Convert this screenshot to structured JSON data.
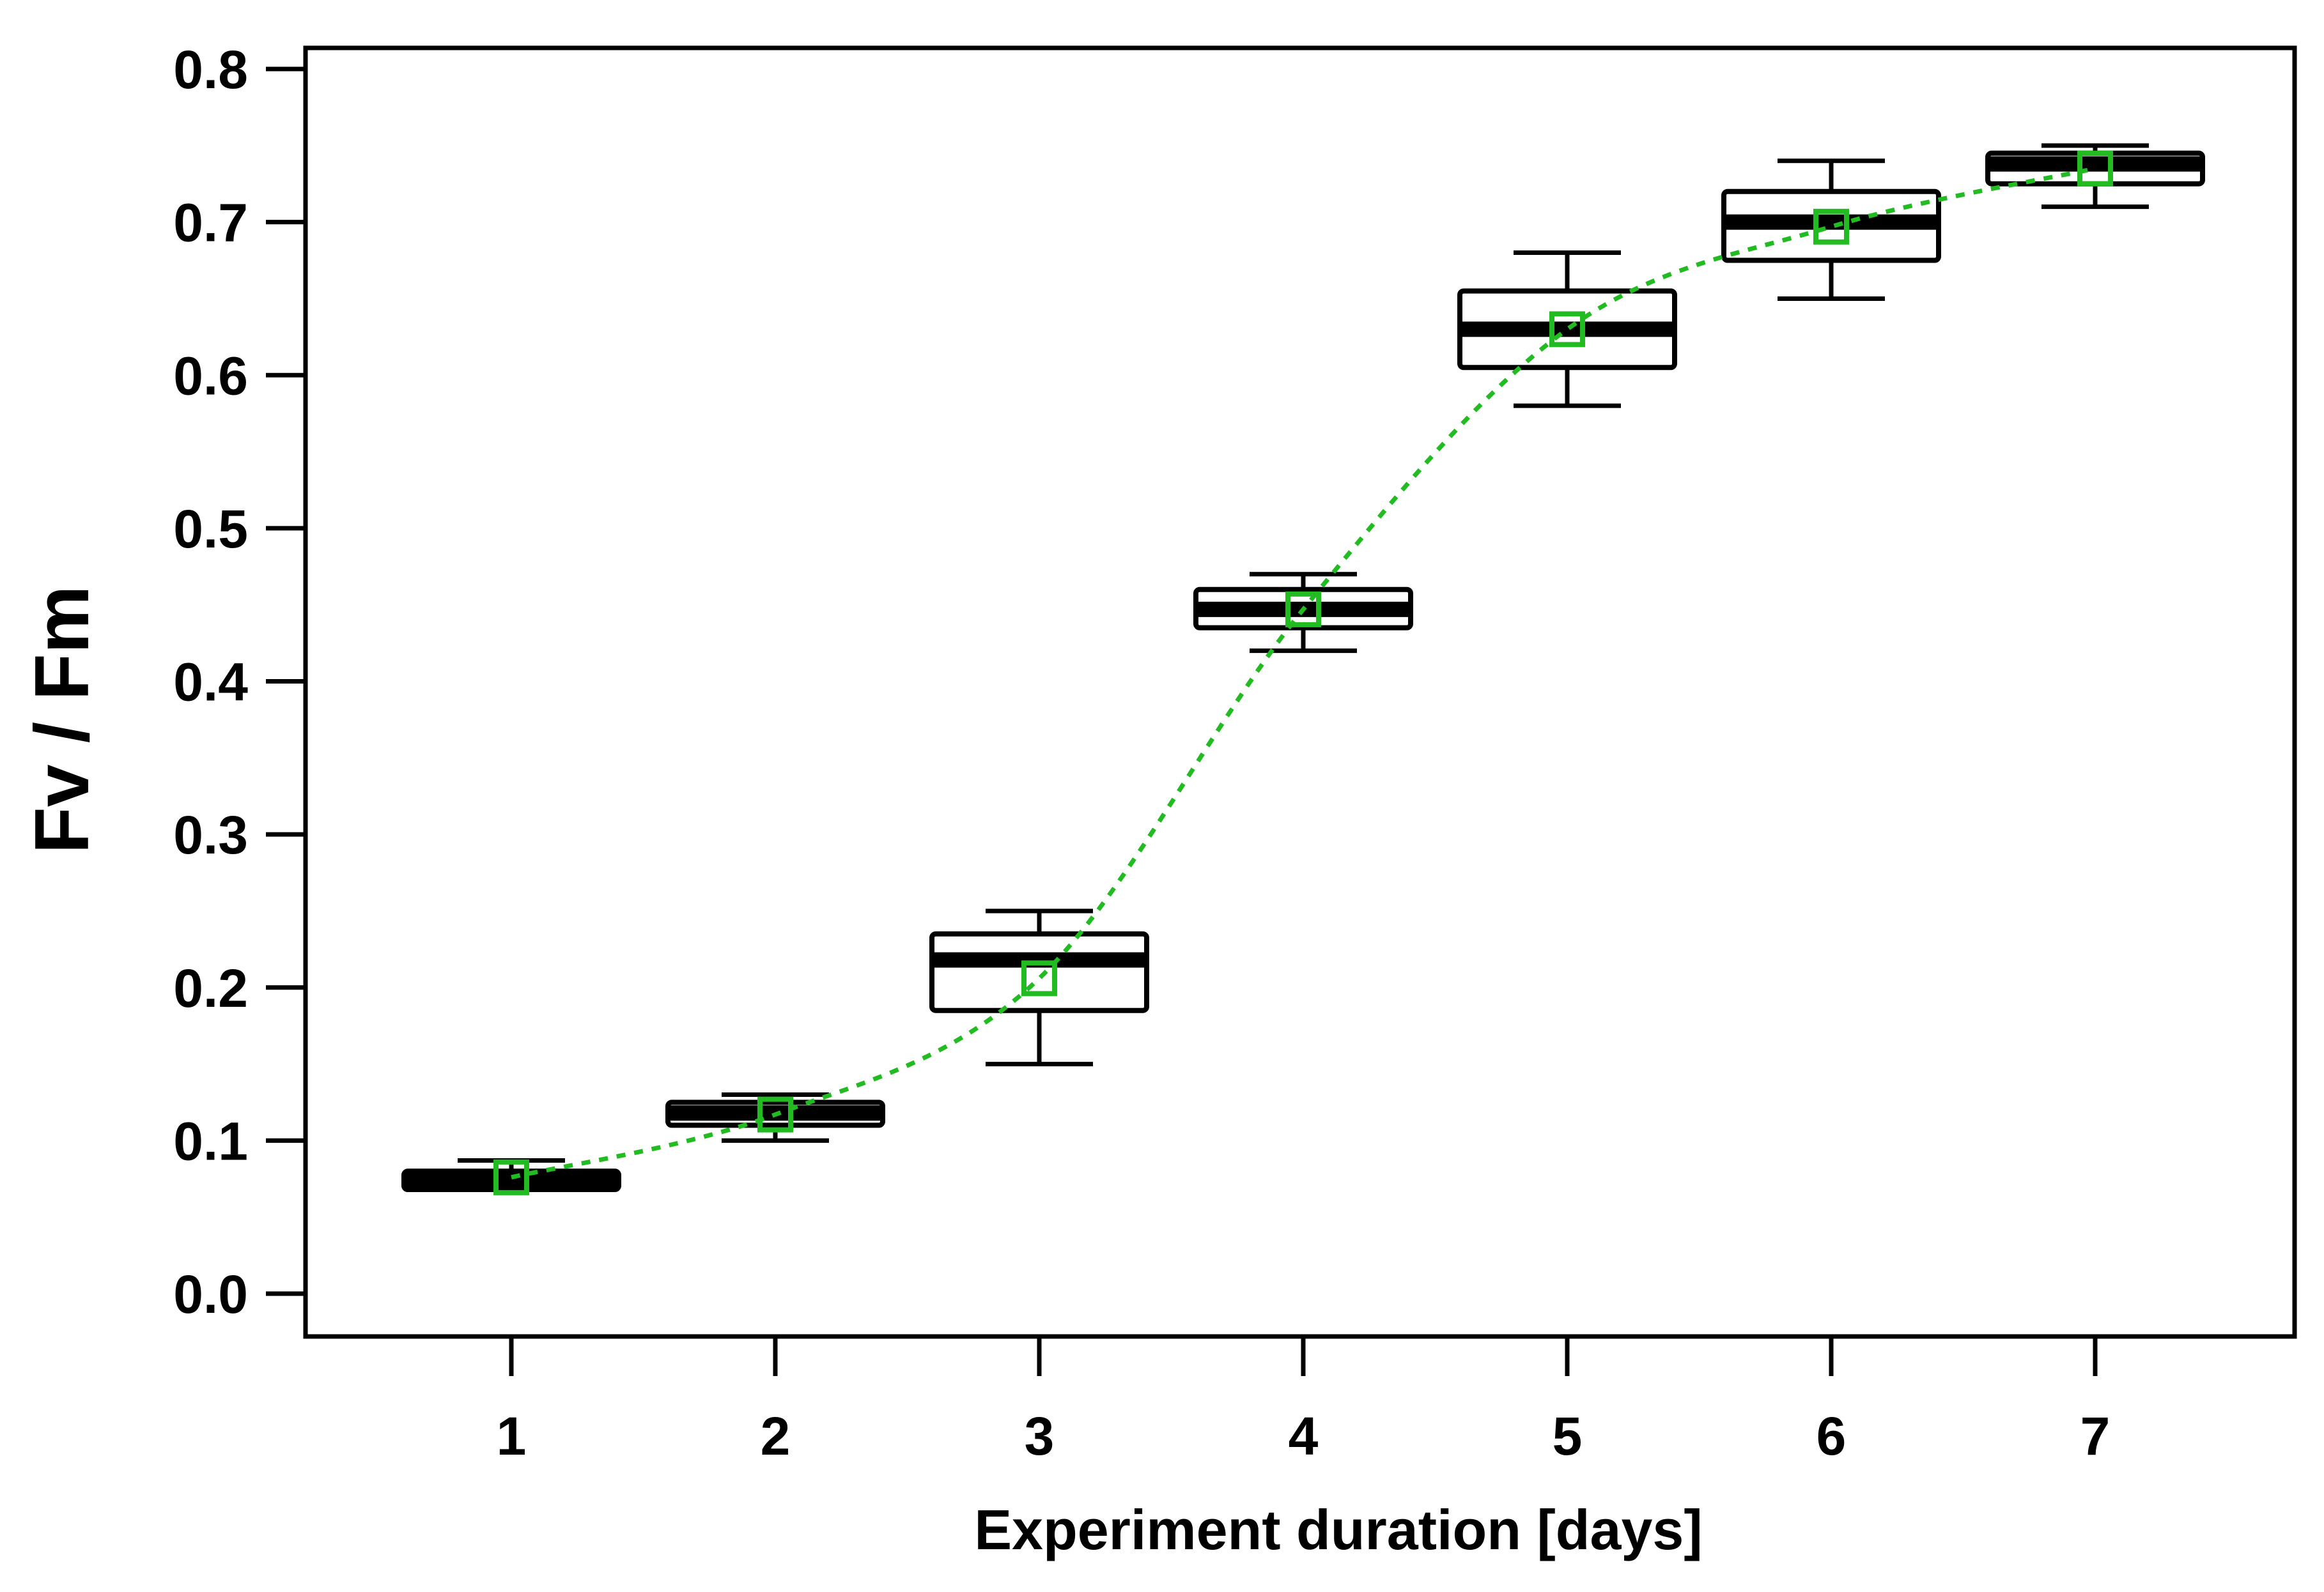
{
  "chart_data": {
    "type": "box",
    "title": "",
    "xlabel": "Experiment duration [days]",
    "ylabel": "Fv / Fm",
    "categories": [
      "1",
      "2",
      "3",
      "4",
      "5",
      "6",
      "7"
    ],
    "ylim": [
      0.0,
      0.8
    ],
    "y_ticks": [
      "0.0",
      "0.1",
      "0.2",
      "0.3",
      "0.4",
      "0.5",
      "0.6",
      "0.7",
      "0.8"
    ],
    "grid": false,
    "boxes": [
      {
        "day": "1",
        "whisker_low": 0.068,
        "q1": 0.068,
        "median": 0.074,
        "q3": 0.08,
        "whisker_high": 0.087
      },
      {
        "day": "2",
        "whisker_low": 0.1,
        "q1": 0.11,
        "median": 0.118,
        "q3": 0.125,
        "whisker_high": 0.13
      },
      {
        "day": "3",
        "whisker_low": 0.15,
        "q1": 0.185,
        "median": 0.218,
        "q3": 0.235,
        "whisker_high": 0.25
      },
      {
        "day": "4",
        "whisker_low": 0.42,
        "q1": 0.435,
        "median": 0.447,
        "q3": 0.46,
        "whisker_high": 0.47
      },
      {
        "day": "5",
        "whisker_low": 0.58,
        "q1": 0.605,
        "median": 0.63,
        "q3": 0.655,
        "whisker_high": 0.68
      },
      {
        "day": "6",
        "whisker_low": 0.65,
        "q1": 0.675,
        "median": 0.7,
        "q3": 0.72,
        "whisker_high": 0.74
      },
      {
        "day": "7",
        "whisker_low": 0.71,
        "q1": 0.725,
        "median": 0.738,
        "q3": 0.745,
        "whisker_high": 0.75
      }
    ],
    "mean_series": {
      "name": "mean",
      "marker": "open-square",
      "line_style": "dotted",
      "color": "#22bb22",
      "values": [
        0.076,
        0.117,
        0.206,
        0.447,
        0.63,
        0.697,
        0.735
      ]
    }
  }
}
